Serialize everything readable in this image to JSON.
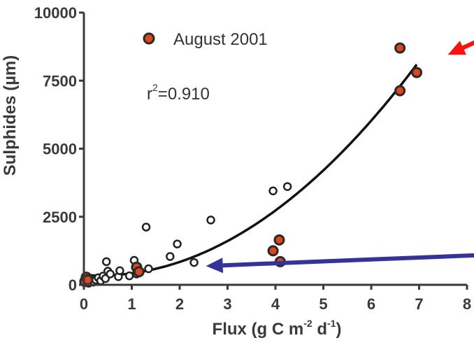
{
  "chart_data": {
    "type": "scatter",
    "ylabel": "Sulphides (µm)",
    "xlabel": {
      "main": "Flux  (g C m",
      "exp1": "-2",
      "mid": " d",
      "exp2": "-1",
      "close": ")"
    },
    "xlim": [
      0,
      8
    ],
    "ylim": [
      0,
      10000
    ],
    "xticks": [
      0,
      1,
      2,
      3,
      4,
      5,
      6,
      7,
      8
    ],
    "yticks": [
      0,
      2500,
      5000,
      7500,
      10000
    ],
    "xtick_labels": [
      "0",
      "1",
      "2",
      "3",
      "4",
      "5",
      "6",
      "7",
      "8"
    ],
    "ytick_labels": [
      "0",
      "2500",
      "5000",
      "7500",
      "10000"
    ],
    "legend": {
      "label": "August 2001",
      "position": "top-left"
    },
    "annotation": {
      "prefix": "r",
      "sup": "2",
      "suffix": "=0.910"
    },
    "series": [
      {
        "marker": "open-circle",
        "color": "#222222",
        "points": [
          [
            0.05,
            80
          ],
          [
            0.08,
            150
          ],
          [
            0.1,
            60
          ],
          [
            0.12,
            220
          ],
          [
            0.15,
            120
          ],
          [
            0.18,
            200
          ],
          [
            0.2,
            100
          ],
          [
            0.25,
            180
          ],
          [
            0.3,
            260
          ],
          [
            0.35,
            150
          ],
          [
            0.4,
            320
          ],
          [
            0.45,
            230
          ],
          [
            0.47,
            850
          ],
          [
            0.5,
            500
          ],
          [
            0.55,
            400
          ],
          [
            0.72,
            300
          ],
          [
            0.75,
            520
          ],
          [
            0.95,
            330
          ],
          [
            1.05,
            900
          ],
          [
            1.1,
            560
          ],
          [
            1.1,
            400
          ],
          [
            1.3,
            2120
          ],
          [
            1.35,
            590
          ],
          [
            1.8,
            1040
          ],
          [
            1.95,
            1500
          ],
          [
            2.3,
            820
          ],
          [
            2.65,
            2380
          ],
          [
            3.95,
            3450
          ],
          [
            4.25,
            3610
          ]
        ]
      },
      {
        "name": "August 2001",
        "marker": "filled-circle",
        "color": "#e0461c",
        "points": [
          [
            0.02,
            120
          ],
          [
            0.05,
            280
          ],
          [
            0.08,
            180
          ],
          [
            1.1,
            650
          ],
          [
            1.15,
            480
          ],
          [
            3.95,
            1250
          ],
          [
            4.08,
            1650
          ],
          [
            4.1,
            850
          ],
          [
            6.6,
            8700
          ],
          [
            6.6,
            7130
          ],
          [
            6.95,
            7800
          ]
        ]
      }
    ],
    "fit_curve": {
      "type": "polynomial",
      "color": "#111111"
    },
    "arrows": [
      {
        "color": "#ff1010",
        "from": [
          8.4,
          9100
        ],
        "to": [
          7.6,
          8450
        ]
      },
      {
        "color": "#333399",
        "from": [
          8.4,
          1100
        ],
        "to": [
          2.55,
          690
        ]
      }
    ]
  }
}
